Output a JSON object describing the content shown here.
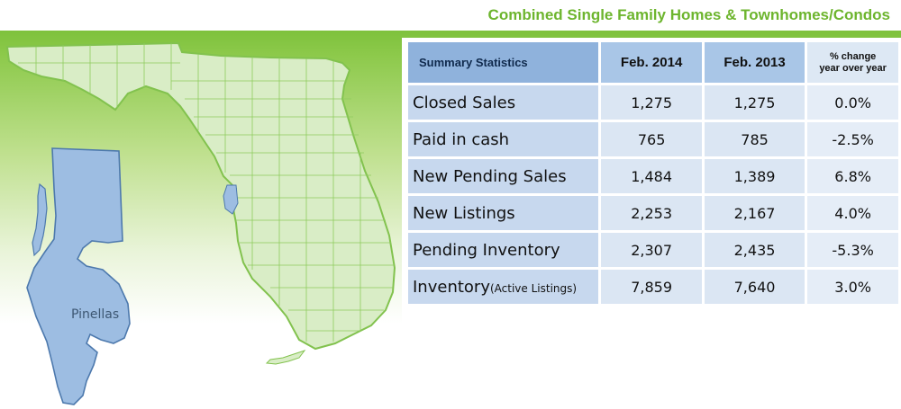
{
  "header": {
    "title": "Combined Single Family Homes & Townhomes/Condos"
  },
  "map": {
    "county_label": "Pinellas"
  },
  "table": {
    "headers": [
      "Summary Statistics",
      "Feb. 2014",
      "Feb. 2013",
      "% change",
      "year over year"
    ],
    "rows": [
      {
        "label": "Closed Sales",
        "sub": "",
        "v2014": "1,275",
        "v2013": "1,275",
        "change": "0.0%"
      },
      {
        "label": "Paid in cash",
        "sub": "",
        "v2014": "765",
        "v2013": "785",
        "change": "-2.5%"
      },
      {
        "label": "New Pending Sales",
        "sub": "",
        "v2014": "1,484",
        "v2013": "1,389",
        "change": "6.8%"
      },
      {
        "label": "New Listings",
        "sub": "",
        "v2014": "2,253",
        "v2013": "2,167",
        "change": "4.0%"
      },
      {
        "label": "Pending Inventory",
        "sub": "",
        "v2014": "2,307",
        "v2013": "2,435",
        "change": "-5.3%"
      },
      {
        "label": "Inventory",
        "sub": "(Active Listings)",
        "v2014": "7,859",
        "v2013": "7,640",
        "change": "3.0%"
      }
    ]
  },
  "colors": {
    "title_green": "#6db52e",
    "county_blue": "#9dbde2",
    "state_fill": "#d8ecc4",
    "state_line": "#7cc04a"
  }
}
